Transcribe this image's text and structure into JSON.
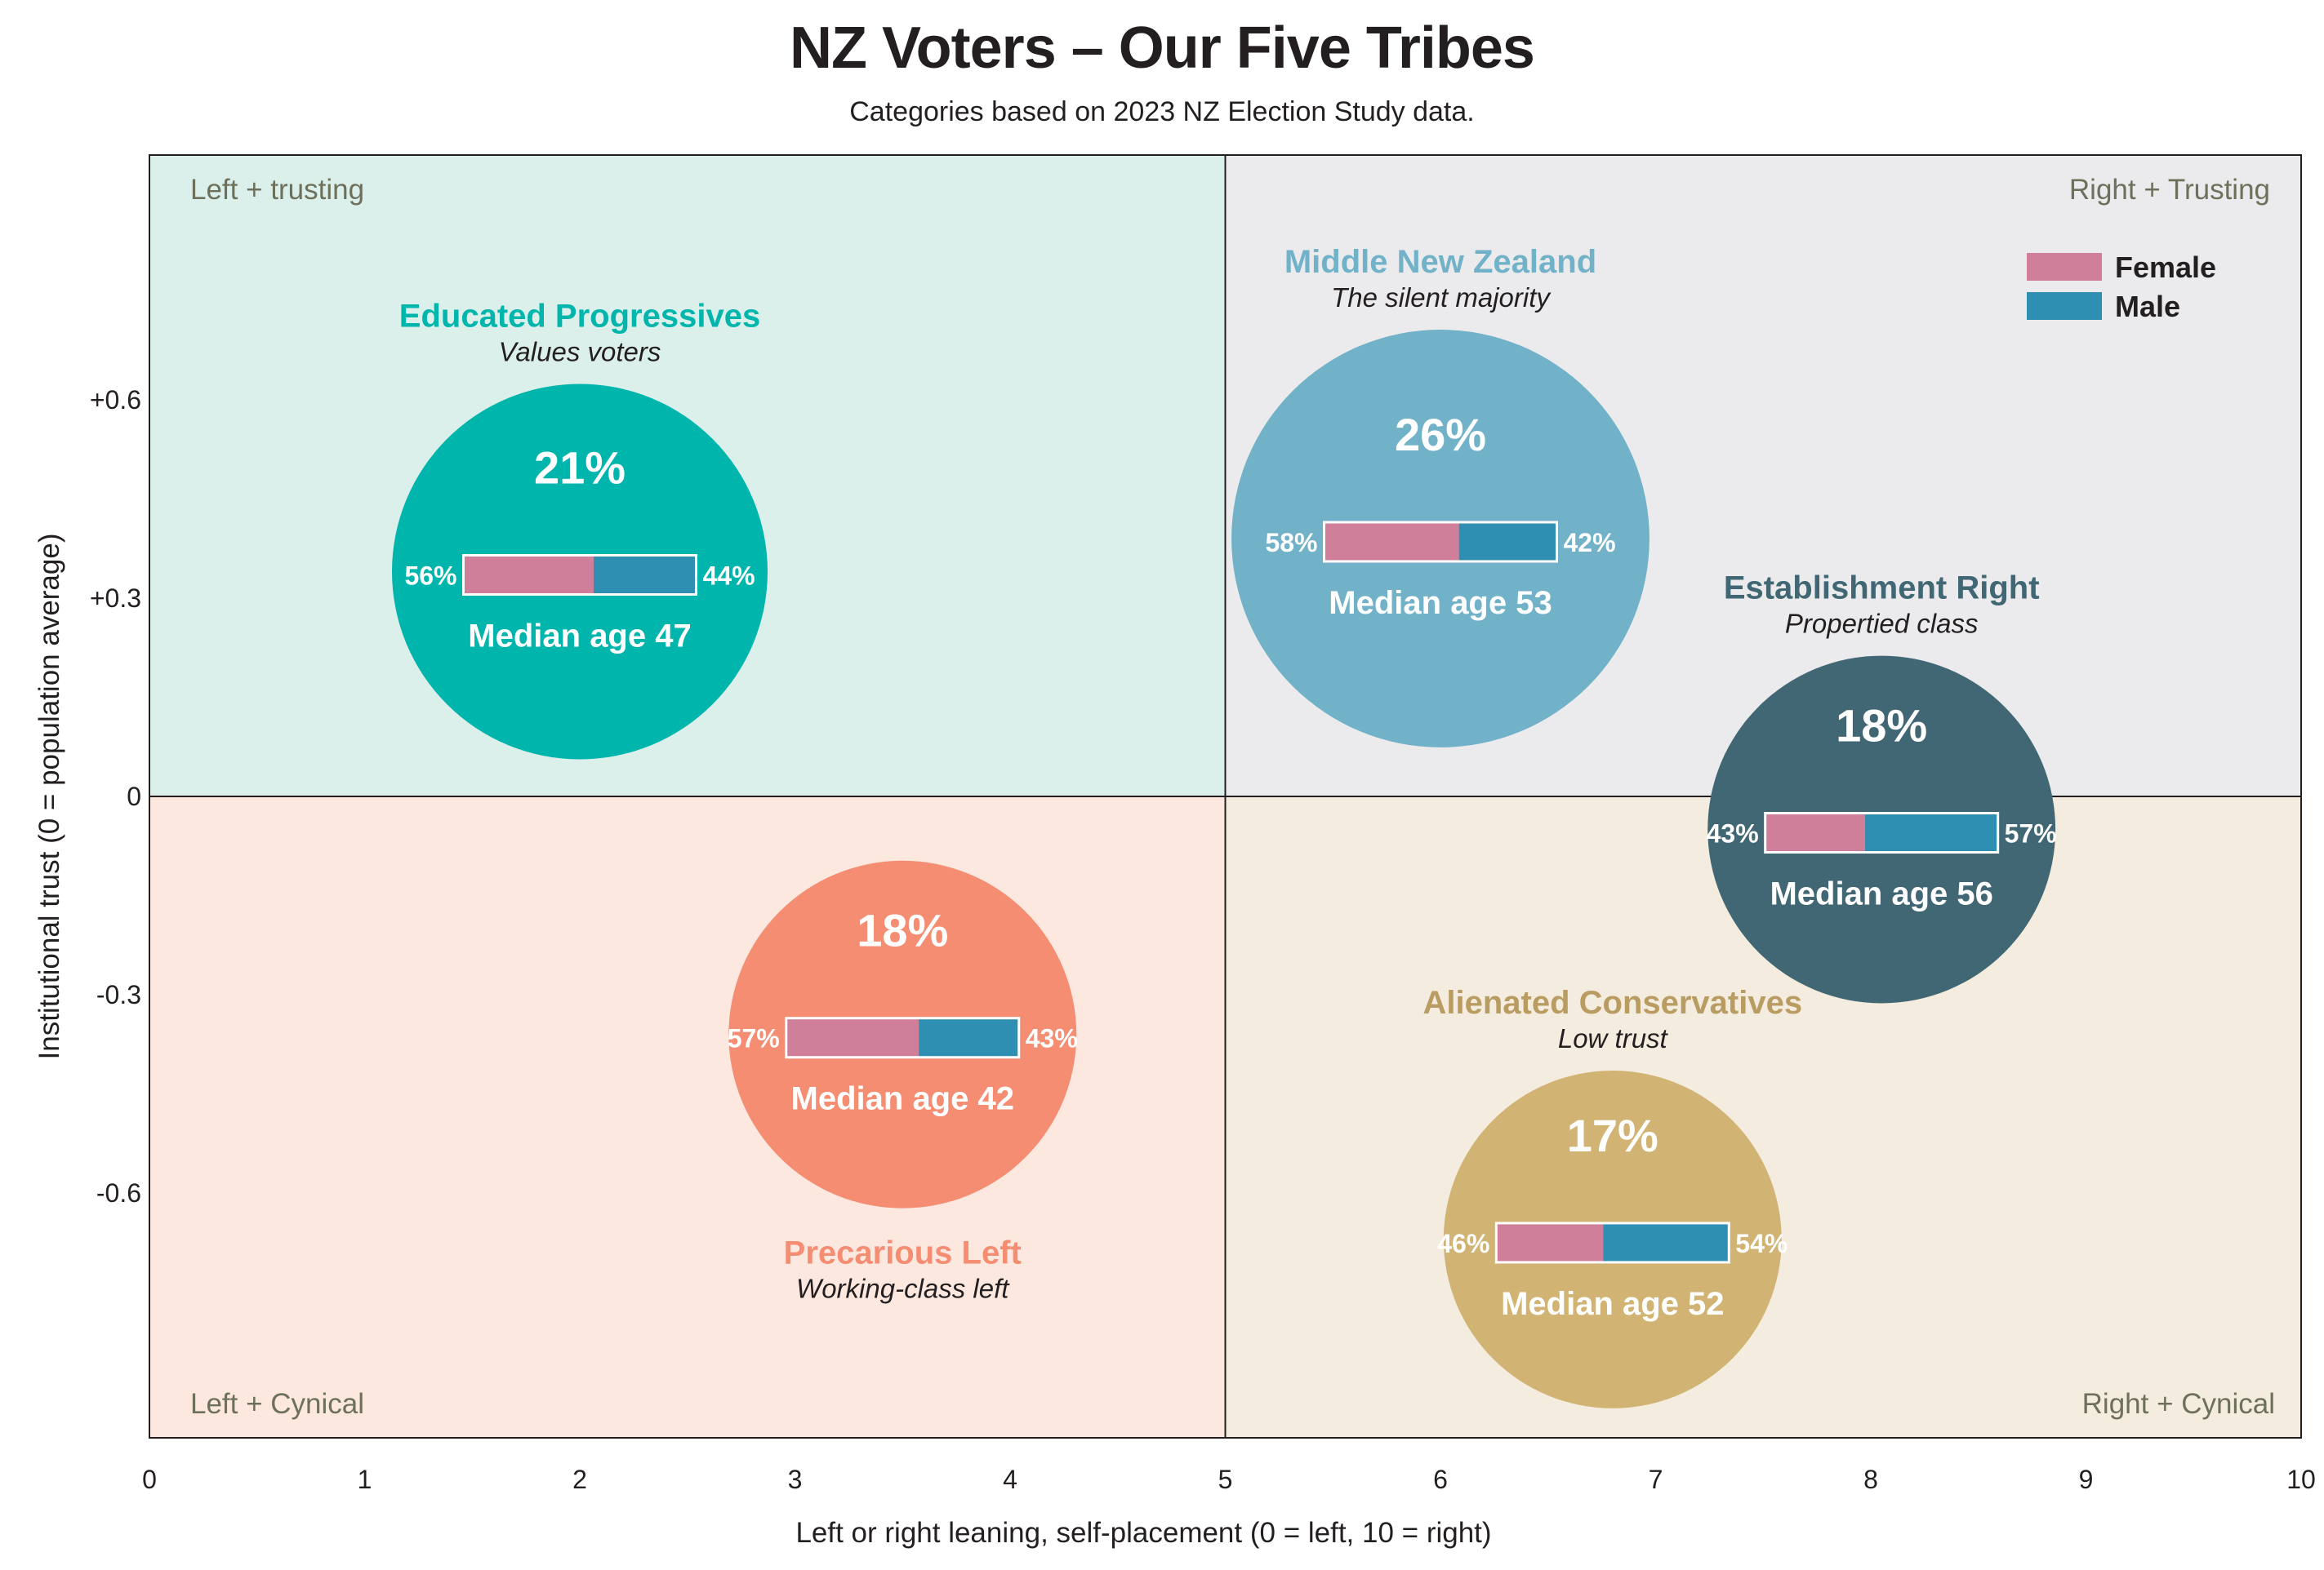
{
  "header": {
    "title": "NZ Voters – Our Five Tribes",
    "subtitle": "Categories based on 2023 NZ Election Study data."
  },
  "chart_data": {
    "type": "scatter",
    "title": "NZ Voters – Our Five Tribes",
    "subtitle": "Categories based on 2023 NZ Election Study data.",
    "xlabel": "Left or right leaning, self-placement (0 = left, 10 = right)",
    "ylabel": "Institutional trust (0 = population average)",
    "xlim": [
      0,
      10
    ],
    "ylim": [
      -0.97,
      0.97
    ],
    "x_ticks": [
      "0",
      "1",
      "2",
      "3",
      "4",
      "5",
      "6",
      "7",
      "8",
      "9",
      "10"
    ],
    "y_ticks": [
      {
        "value": 0.6,
        "label": "+0.6"
      },
      {
        "value": 0.3,
        "label": "+0.3"
      },
      {
        "value": 0,
        "label": "0"
      },
      {
        "value": -0.3,
        "label": "-0.3"
      },
      {
        "value": -0.6,
        "label": "-0.6"
      }
    ],
    "quadrants": [
      {
        "label": "Left + trusting",
        "color": "#dcf0eb"
      },
      {
        "label": "Right + Trusting",
        "color": "#ebebed"
      },
      {
        "label": "Left + Cynical",
        "color": "#fde8e0"
      },
      {
        "label": "Right + Cynical",
        "color": "#f4ecdf"
      }
    ],
    "legend": {
      "position": "top-right",
      "items": [
        {
          "label": "Female",
          "color": "#cf7f9a"
        },
        {
          "label": "Male",
          "color": "#2f8fb3"
        }
      ]
    },
    "groups": [
      {
        "name": "Educated Progressives",
        "tagline": "Values voters",
        "x": 2.0,
        "y": 0.34,
        "share": 21,
        "share_label": "21%",
        "female": 56,
        "male": 44,
        "female_label": "56%",
        "male_label": "44%",
        "median_age_label": "Median age 47",
        "color": "#00b5ac",
        "name_color": "#00b5ac"
      },
      {
        "name": "Middle New Zealand",
        "tagline": "The silent majority",
        "x": 6.0,
        "y": 0.39,
        "share": 26,
        "share_label": "26%",
        "female": 58,
        "male": 42,
        "female_label": "58%",
        "male_label": "42%",
        "median_age_label": "Median age 53",
        "color": "#71b2c9",
        "name_color": "#71b2c9"
      },
      {
        "name": "Establishment Right",
        "tagline": "Propertied class",
        "x": 8.05,
        "y": -0.05,
        "share": 18,
        "share_label": "18%",
        "female": 43,
        "male": 57,
        "female_label": "43%",
        "male_label": "57%",
        "median_age_label": "Median age 56",
        "color": "#406773",
        "name_color": "#406773"
      },
      {
        "name": "Precarious Left",
        "tagline": "Working-class left",
        "x": 3.5,
        "y": -0.36,
        "share": 18,
        "share_label": "18%",
        "female": 57,
        "male": 43,
        "female_label": "57%",
        "male_label": "43%",
        "median_age_label": "Median age 42",
        "color": "#f48d72",
        "name_color": "#f48d72"
      },
      {
        "name": "Alienated Conservatives",
        "tagline": "Low trust",
        "x": 6.8,
        "y": -0.67,
        "share": 17,
        "share_label": "17%",
        "female": 46,
        "male": 54,
        "female_label": "46%",
        "male_label": "54%",
        "median_age_label": "Median age 52",
        "color": "#d1b374",
        "name_color": "#b99c61"
      }
    ]
  }
}
